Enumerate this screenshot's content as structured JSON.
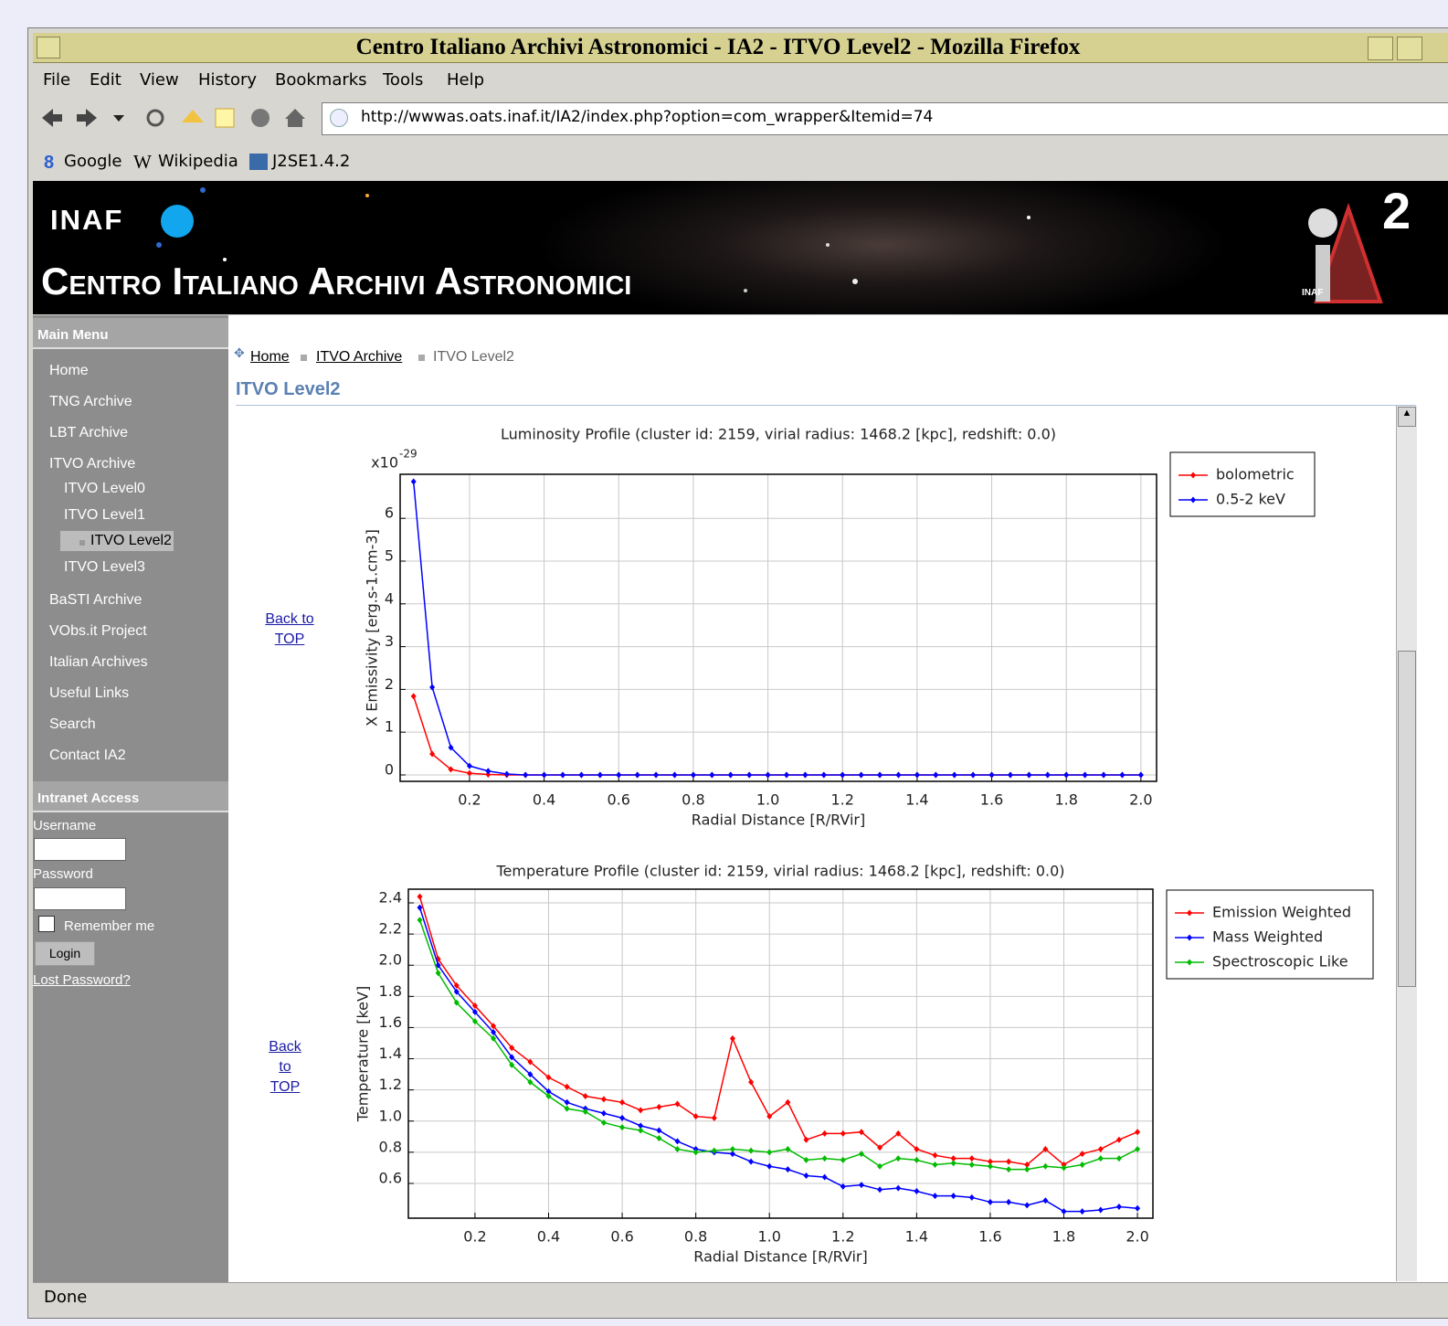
{
  "window": {
    "title": "Centro Italiano Archivi Astronomici - IA2 - ITVO Level2 - Mozilla Firefox",
    "menu": [
      "File",
      "Edit",
      "View",
      "History",
      "Bookmarks",
      "Tools",
      "Help"
    ],
    "url": "http://wwwas.oats.inaf.it/IA2/index.php?option=com_wrapper&Itemid=74",
    "bookmarks": [
      "Google",
      "Wikipedia",
      "J2SE1.4.2"
    ],
    "status": "Done"
  },
  "header": {
    "org": "INAF",
    "title": "Centro Italiano Archivi Astronomici",
    "logo_text": "2",
    "logo_org": "INAF"
  },
  "sidebar": {
    "title": "Main Menu",
    "menu": [
      "Home",
      "TNG Archive",
      "LBT Archive",
      {
        "label": "ITVO Archive",
        "children": [
          "ITVO Level0",
          "ITVO Level1",
          "ITVO Level2",
          "ITVO Level3"
        ]
      },
      "BaSTI Archive",
      "VObs.it Project",
      "Italian Archives",
      "Useful Links",
      "Search",
      "Contact IA2"
    ],
    "login": {
      "title": "Intranet Access",
      "username": "Username",
      "password": "Password",
      "remember": "Remember me",
      "button": "Login",
      "lost": "Lost Password?"
    }
  },
  "content": {
    "breadcrumb": [
      "Home",
      "ITVO Archive",
      "ITVO Level2"
    ],
    "heading": "ITVO Level2",
    "back_links": [
      "Back to TOP",
      "Back to TOP"
    ]
  },
  "chart_data": [
    {
      "type": "line",
      "title": "Luminosity Profile (cluster id: 2159, virial radius: 1468.2 [kpc], redshift: 0.0)",
      "x_label": "Radial Distance [R/RVir]",
      "y_label": "X Emissivity [erg.s-1.cm-3]",
      "y_multiplier": "x10",
      "y_multiplier_exponent": "-29",
      "x": [
        0.05,
        0.1,
        0.15,
        0.2,
        0.25,
        0.3,
        0.35,
        0.4,
        0.45,
        0.5,
        0.55,
        0.6,
        0.65,
        0.7,
        0.75,
        0.8,
        0.85,
        0.9,
        0.95,
        1.0,
        1.05,
        1.1,
        1.15,
        1.2,
        1.25,
        1.3,
        1.35,
        1.4,
        1.45,
        1.5,
        1.55,
        1.6,
        1.65,
        1.7,
        1.75,
        1.8,
        1.85,
        1.9,
        1.95,
        2.0
      ],
      "series": [
        {
          "name": "bolometric",
          "color": "#ff0000",
          "values": [
            1.84,
            0.49,
            0.13,
            0.04,
            0.01,
            0,
            0,
            0,
            0,
            0,
            0,
            0,
            0,
            0,
            0,
            0,
            0,
            0,
            0,
            0,
            0,
            0,
            0,
            0,
            0,
            0,
            0,
            0,
            0,
            0,
            0,
            0,
            0,
            0,
            0,
            0,
            0,
            0,
            0,
            0
          ]
        },
        {
          "name": "0.5-2 keV",
          "color": "#0000ff",
          "values": [
            6.86,
            2.05,
            0.64,
            0.21,
            0.09,
            0.02,
            0,
            0,
            0,
            0,
            0,
            0,
            0,
            0,
            0,
            0,
            0,
            0,
            0,
            0,
            0,
            0,
            0,
            0,
            0,
            0,
            0,
            0,
            0,
            0,
            0,
            0,
            0,
            0,
            0,
            0,
            0,
            0,
            0,
            0
          ]
        }
      ],
      "xlim": [
        0.014,
        2.042
      ],
      "ylim": [
        -0.15,
        7.03
      ],
      "xticks": [
        0.2,
        0.4,
        0.6,
        0.8,
        {
          "value": 1,
          "label": "1.0"
        },
        1.2,
        1.4,
        1.6,
        1.8,
        {
          "value": 2,
          "label": "2.0"
        }
      ],
      "yticks": [
        0,
        1,
        2,
        3,
        4,
        5,
        6
      ],
      "grid": true,
      "legend": "outside-right"
    },
    {
      "type": "line",
      "title": "Temperature Profile (cluster id: 2159, virial radius: 1468.2 [kpc], redshift: 0.0)",
      "x_label": "Radial Distance [R/RVir]",
      "y_label": "Temperature [keV]",
      "x": [
        0.05,
        0.1,
        0.15,
        0.2,
        0.25,
        0.3,
        0.35,
        0.4,
        0.45,
        0.5,
        0.55,
        0.6,
        0.65,
        0.7,
        0.75,
        0.8,
        0.85,
        0.9,
        0.95,
        1.0,
        1.05,
        1.1,
        1.15,
        1.2,
        1.25,
        1.3,
        1.35,
        1.4,
        1.45,
        1.5,
        1.55,
        1.6,
        1.65,
        1.7,
        1.75,
        1.8,
        1.85,
        1.9,
        1.95,
        2.0
      ],
      "series": [
        {
          "name": "Emission Weighted",
          "color": "#ff0000",
          "values": [
            2.44,
            2.04,
            1.87,
            1.74,
            1.61,
            1.47,
            1.38,
            1.28,
            1.22,
            1.16,
            1.14,
            1.12,
            1.07,
            1.09,
            1.11,
            1.03,
            1.02,
            1.53,
            1.25,
            1.03,
            1.12,
            0.88,
            0.92,
            0.92,
            0.93,
            0.83,
            0.92,
            0.82,
            0.78,
            0.76,
            0.76,
            0.74,
            0.74,
            0.72,
            0.82,
            0.72,
            0.79,
            0.82,
            0.88,
            0.93
          ]
        },
        {
          "name": "Mass Weighted",
          "color": "#0000ff",
          "values": [
            2.37,
            2.0,
            1.83,
            1.7,
            1.57,
            1.41,
            1.3,
            1.19,
            1.12,
            1.08,
            1.05,
            1.02,
            0.97,
            0.94,
            0.87,
            0.82,
            0.8,
            0.79,
            0.74,
            0.71,
            0.69,
            0.65,
            0.64,
            0.58,
            0.59,
            0.56,
            0.57,
            0.55,
            0.52,
            0.52,
            0.51,
            0.48,
            0.48,
            0.46,
            0.49,
            0.42,
            0.42,
            0.43,
            0.45,
            0.44
          ]
        },
        {
          "name": "Spectroscopic Like",
          "color": "#00bb00",
          "values": [
            2.29,
            1.95,
            1.76,
            1.64,
            1.53,
            1.36,
            1.25,
            1.16,
            1.08,
            1.06,
            0.99,
            0.96,
            0.94,
            0.89,
            0.82,
            0.8,
            0.81,
            0.82,
            0.81,
            0.8,
            0.82,
            0.75,
            0.76,
            0.75,
            0.79,
            0.71,
            0.76,
            0.75,
            0.72,
            0.73,
            0.72,
            0.71,
            0.69,
            0.69,
            0.71,
            0.7,
            0.72,
            0.76,
            0.76,
            0.82
          ]
        }
      ],
      "xlim": [
        0.019,
        2.042
      ],
      "ylim": [
        0.377,
        2.488
      ],
      "xticks": [
        0.2,
        0.4,
        0.6,
        0.8,
        {
          "value": 1,
          "label": "1.0"
        },
        1.2,
        1.4,
        1.6,
        1.8,
        {
          "value": 2,
          "label": "2.0"
        }
      ],
      "yticks": [
        0.6,
        0.8,
        {
          "value": 1,
          "label": "1.0"
        },
        1.2,
        1.4,
        1.6,
        1.8,
        {
          "value": 2,
          "label": "2.0"
        },
        2.2,
        2.4
      ],
      "grid": true,
      "legend": "outside-right"
    }
  ]
}
